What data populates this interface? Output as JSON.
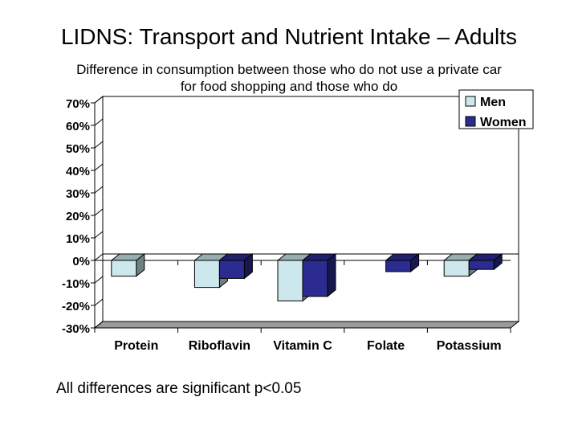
{
  "slide": {
    "title": "LIDNS: Transport and Nutrient Intake – Adults",
    "subtitle_line1": "Difference in consumption between those who do not use a private car",
    "subtitle_line2": "for food shopping and those who do",
    "footnote": "All differences are significant p<0.05"
  },
  "chart_data": {
    "type": "bar",
    "style": "3d-clustered",
    "categories": [
      "Protein",
      "Riboflavin",
      "Vitamin C",
      "Folate",
      "Potassium"
    ],
    "series": [
      {
        "name": "Men",
        "color": "#cce8ec",
        "values": [
          -7,
          -12,
          -18,
          0,
          -7
        ]
      },
      {
        "name": "Women",
        "color": "#2b2b91",
        "values": [
          0,
          -8,
          -16,
          -5,
          -4
        ]
      }
    ],
    "ylim": [
      -30,
      70
    ],
    "yticks": [
      "-30%",
      "-20%",
      "-10%",
      "0%",
      "10%",
      "20%",
      "30%",
      "40%",
      "50%",
      "60%",
      "70%"
    ],
    "grid": false,
    "legend_position": "top-right"
  }
}
